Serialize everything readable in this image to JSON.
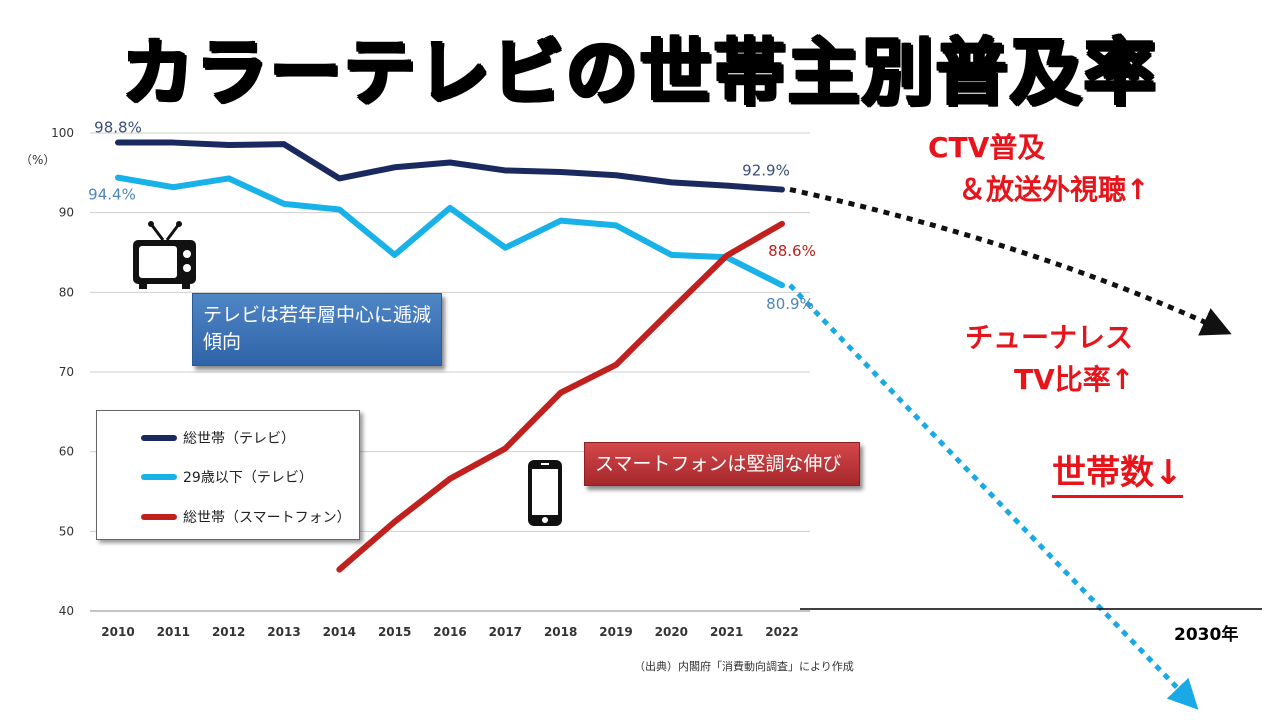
{
  "title": "カラーテレビの世帯主別普及率",
  "callouts": {
    "tv": "テレビは若年層中心に逓減傾向",
    "smartphone": "スマートフォンは堅調な伸び"
  },
  "annotations": {
    "ctv_line1": "CTV普及",
    "ctv_line2": "＆放送外視聴↑",
    "tunerless_line1": "チューナレス",
    "tunerless_line2": "TV比率↑",
    "households": "世帯数↓",
    "year_2030": "2030年"
  },
  "source": "（出典）内閣府「消費動向調査」により作成",
  "icons": [
    "tv-icon",
    "smartphone-icon"
  ],
  "chart_data": {
    "type": "line",
    "ylabel": "（%）",
    "ylim": [
      40,
      100
    ],
    "yticks": [
      40,
      50,
      60,
      70,
      80,
      90,
      100
    ],
    "x": [
      "2010",
      "2011",
      "2012",
      "2013",
      "2014",
      "2015",
      "2016",
      "2017",
      "2018",
      "2019",
      "2020",
      "2021",
      "2022"
    ],
    "grid": true,
    "legend_position": "bottom-left",
    "series": [
      {
        "name": "総世帯（テレビ）",
        "color": "#1b2a5e",
        "values": [
          98.8,
          98.8,
          98.5,
          98.6,
          94.3,
          95.7,
          96.3,
          95.3,
          95.1,
          94.7,
          93.8,
          93.4,
          92.9
        ],
        "labels": {
          "0": "98.8%",
          "12": "92.9%"
        }
      },
      {
        "name": "29歳以下（テレビ）",
        "color": "#19b2e8",
        "values": [
          94.4,
          93.2,
          94.3,
          91.1,
          90.4,
          84.7,
          90.6,
          85.6,
          89.0,
          88.4,
          84.7,
          84.4,
          80.9
        ],
        "labels": {
          "0": "94.4%",
          "12": "80.9%"
        }
      },
      {
        "name": "総世帯（スマートフォン）",
        "color": "#c0201e",
        "values": [
          null,
          null,
          null,
          null,
          45.2,
          51.2,
          56.6,
          60.4,
          67.4,
          70.9,
          77.8,
          84.6,
          88.6
        ],
        "labels": {
          "12": "88.6%"
        }
      }
    ],
    "projections": [
      {
        "series": "総世帯（テレビ）",
        "color": "#111111",
        "end_label": "2030年",
        "direction": "down"
      },
      {
        "series": "29歳以下（テレビ）",
        "color": "#19a9e6",
        "end_label": "2030年",
        "direction": "down"
      }
    ]
  }
}
